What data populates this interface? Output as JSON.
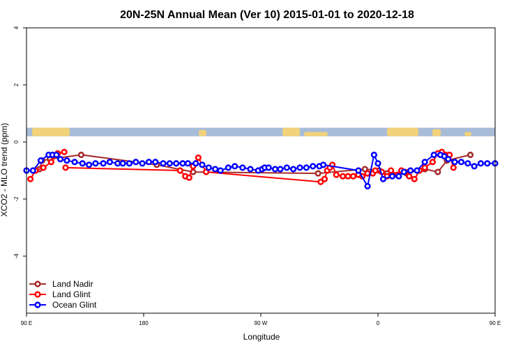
{
  "chart_data": {
    "type": "line",
    "title": "20N-25N Annual Mean (Ver 10)   2015-01-01 to 2020-12-18",
    "xlabel": "Longitude",
    "ylabel": "XCO2 - MLO trend (ppm)",
    "xlim": [
      90,
      450
    ],
    "ylim": [
      -6,
      4
    ],
    "x_ticks": [
      90,
      180,
      270,
      360,
      450
    ],
    "x_tick_labels": [
      "90 E",
      "180",
      "90 W",
      "0",
      "90 E"
    ],
    "y_ticks": [
      -4,
      -2,
      0,
      2,
      4
    ],
    "y_tick_labels": [
      "-4",
      "-2",
      "0",
      "2",
      "4"
    ],
    "map_band": {
      "y_range": [
        0.2,
        0.5
      ],
      "ocean_color": "#a8bcd8",
      "land_color": "#f2d27a"
    },
    "legend_position": "bottom-left",
    "series": [
      {
        "name": "Land Nadir",
        "color": "#a52a2a",
        "x": [
          96,
          100,
          102,
          108,
          132,
          190,
          218,
          314,
          350,
          361,
          367,
          382,
          396,
          406,
          413,
          431
        ],
        "values": [
          -1.0,
          -0.95,
          -0.65,
          -0.6,
          -0.45,
          -0.8,
          -1.05,
          -1.1,
          -0.95,
          -1.0,
          -1.1,
          -1.1,
          -0.95,
          -1.05,
          -0.65,
          -0.45
        ]
      },
      {
        "name": "Land Glint",
        "color": "#ff0000",
        "x": [
          93,
          97,
          103,
          109,
          114,
          119,
          120,
          208,
          212,
          215,
          218,
          222,
          228,
          316,
          319,
          321,
          323,
          325,
          328,
          333,
          337,
          341,
          345,
          348,
          352,
          356,
          358,
          363,
          367,
          370,
          375,
          378,
          381,
          384,
          388,
          392,
          396,
          402,
          406,
          409,
          412,
          415,
          418
        ],
        "values": [
          -1.3,
          -1.0,
          -0.9,
          -0.7,
          -0.4,
          -0.35,
          -0.9,
          -1.0,
          -1.2,
          -1.25,
          -0.85,
          -0.55,
          -1.05,
          -1.4,
          -1.3,
          -1.0,
          -0.9,
          -0.8,
          -1.15,
          -1.2,
          -1.2,
          -1.2,
          -1.15,
          -1.2,
          -1.1,
          -1.1,
          -1.0,
          -1.05,
          -1.2,
          -1.0,
          -1.15,
          -1.0,
          -1.05,
          -1.2,
          -1.3,
          -1.0,
          -0.9,
          -0.7,
          -0.4,
          -0.35,
          -0.45,
          -0.45,
          -0.9
        ],
        "segment_breaks_after_index": [
          5
        ]
      },
      {
        "name": "Ocean Glint",
        "color": "#0000ff",
        "x": [
          90,
          95,
          101,
          107,
          110,
          113,
          116,
          121,
          127,
          133,
          138,
          143,
          149,
          154,
          160,
          164,
          169,
          174,
          179,
          184,
          189,
          195,
          200,
          205,
          210,
          214,
          220,
          225,
          230,
          235,
          239,
          245,
          250,
          256,
          262,
          268,
          271,
          273,
          276,
          281,
          285,
          290,
          295,
          300,
          305,
          310,
          315,
          318,
          345,
          352,
          357,
          360,
          364,
          371,
          376,
          380,
          385,
          390,
          396,
          403,
          408,
          411,
          414,
          419,
          424,
          429,
          434,
          439,
          444,
          450
        ],
        "values": [
          -1.0,
          -1.0,
          -0.65,
          -0.45,
          -0.45,
          -0.45,
          -0.6,
          -0.65,
          -0.7,
          -0.75,
          -0.8,
          -0.75,
          -0.75,
          -0.7,
          -0.75,
          -0.75,
          -0.75,
          -0.7,
          -0.75,
          -0.7,
          -0.7,
          -0.75,
          -0.75,
          -0.75,
          -0.75,
          -0.75,
          -0.75,
          -0.8,
          -0.9,
          -0.95,
          -1.0,
          -0.9,
          -0.85,
          -0.9,
          -0.95,
          -1.0,
          -0.95,
          -0.9,
          -0.9,
          -0.95,
          -0.95,
          -0.9,
          -0.95,
          -0.9,
          -0.9,
          -0.85,
          -0.85,
          -0.8,
          -1.0,
          -1.55,
          -0.45,
          -0.75,
          -1.3,
          -1.2,
          -1.2,
          -1.05,
          -1.0,
          -1.0,
          -0.7,
          -0.45,
          -0.45,
          -0.5,
          -0.6,
          -0.7,
          -0.7,
          -0.75,
          -0.85,
          -0.75,
          -0.75,
          -0.75
        ]
      }
    ]
  }
}
